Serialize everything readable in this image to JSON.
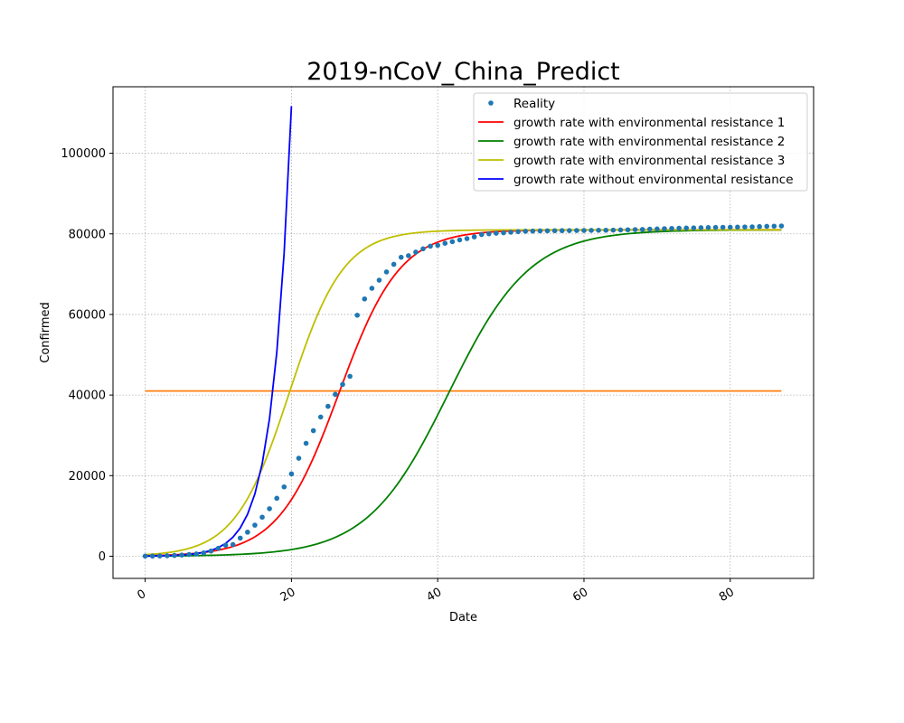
{
  "chart_data": {
    "type": "line",
    "title": "2019-nCoV_China_Predict",
    "xlabel": "Date",
    "ylabel": "Confirmed",
    "xlim": [
      -4.4,
      91.4
    ],
    "ylim": [
      -5500,
      116500
    ],
    "x_ticks": [
      0,
      20,
      40,
      60,
      80
    ],
    "y_ticks": [
      0,
      20000,
      40000,
      60000,
      80000,
      100000
    ],
    "x_tick_labels": [
      "0",
      "20",
      "40",
      "60",
      "80"
    ],
    "y_tick_labels": [
      "0",
      "20000",
      "40000",
      "60000",
      "80000",
      "100000"
    ],
    "grid": true,
    "legend_position": "top-right",
    "colors": {
      "reality": "#1f77b4",
      "resistance_1": "#ff0000",
      "resistance_2": "#008000",
      "resistance_3": "#bfbf00",
      "no_resistance": "#0000ff",
      "half_capacity": "#ff7f0e"
    },
    "reality": {
      "name": "Reality",
      "x": [
        0,
        1,
        2,
        3,
        4,
        5,
        6,
        7,
        8,
        9,
        10,
        11,
        12,
        13,
        14,
        15,
        16,
        17,
        18,
        19,
        20,
        21,
        22,
        23,
        24,
        25,
        26,
        27,
        28,
        29,
        30,
        31,
        32,
        33,
        34,
        35,
        36,
        37,
        38,
        39,
        40,
        41,
        42,
        43,
        44,
        45,
        46,
        47,
        48,
        49,
        50,
        51,
        52,
        53,
        54,
        55,
        56,
        57,
        58,
        59,
        60,
        61,
        62,
        63,
        64,
        65,
        66,
        67,
        68,
        69,
        70,
        71,
        72,
        73,
        74,
        75,
        76,
        77,
        78,
        79,
        80,
        81,
        82,
        83,
        84,
        85,
        86,
        87
      ],
      "y": [
        40,
        45,
        62,
        121,
        198,
        291,
        440,
        571,
        830,
        1287,
        1975,
        2744,
        2900,
        4500,
        5974,
        7711,
        9692,
        11791,
        14380,
        17205,
        20438,
        24324,
        28018,
        31161,
        34546,
        37198,
        40171,
        42638,
        44653,
        59804,
        63851,
        66492,
        68500,
        70548,
        72436,
        74185,
        74576,
        75465,
        76288,
        76936,
        77150,
        77658,
        78064,
        78497,
        78824,
        79251,
        79824,
        80026,
        80151,
        80270,
        80409,
        80552,
        80651,
        80695,
        80735,
        80754,
        80778,
        80793,
        80813,
        80824,
        80844,
        80860,
        80881,
        80894,
        80928,
        80967,
        81008,
        81054,
        81093,
        81171,
        81218,
        81285,
        81340,
        81394,
        81439,
        81470,
        81518,
        81554,
        81589,
        81620,
        81639,
        81669,
        81708,
        81740,
        81802,
        81865,
        81907,
        81953
      ]
    },
    "series": [
      {
        "name": "growth rate with environmental resistance 1",
        "model": "logistic",
        "K": 81000,
        "x0": 26.5,
        "k": 0.24,
        "x_max": 87
      },
      {
        "name": "growth rate with environmental resistance 2",
        "model": "logistic",
        "K": 81000,
        "x0": 41.5,
        "k": 0.18,
        "x_max": 87
      },
      {
        "name": "growth rate with environmental resistance 3",
        "model": "logistic",
        "K": 81000,
        "x0": 19.7,
        "k": 0.27,
        "x_max": 87
      },
      {
        "name": "growth rate without environmental resistance",
        "model": "exponential",
        "a": 41,
        "r": 0.3955,
        "x_max": 20
      }
    ],
    "half_capacity": {
      "y": 41000,
      "x_range": [
        0,
        87
      ]
    }
  }
}
